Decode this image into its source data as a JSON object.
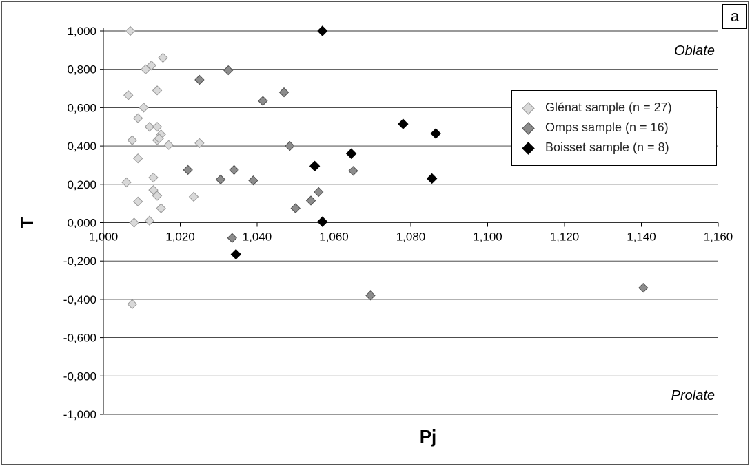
{
  "panel_label": "a",
  "chart_data": {
    "type": "scatter",
    "title": "",
    "xlabel": "Pj",
    "ylabel": "T",
    "xlim": [
      1.0,
      1.16
    ],
    "ylim": [
      -1.0,
      1.0
    ],
    "x_ticks": [
      "1,000",
      "1,020",
      "1,040",
      "1,060",
      "1,080",
      "1,100",
      "1,120",
      "1,140",
      "1,160"
    ],
    "y_ticks": [
      "1,000",
      "0,800",
      "0,600",
      "0,400",
      "0,200",
      "0,000",
      "-0,200",
      "-0,400",
      "-0,600",
      "-0,800",
      "-1,000"
    ],
    "grid": "horizontal",
    "legend_position": "right",
    "annotations": {
      "top": "Oblate",
      "bottom": "Prolate"
    },
    "series": [
      {
        "name": "Glénat sample (n = 27)",
        "color": "#d9d9d9",
        "stroke": "#9a9a9a",
        "points": [
          [
            1.007,
            1.0
          ],
          [
            1.011,
            0.8
          ],
          [
            1.0125,
            0.82
          ],
          [
            1.0155,
            0.86
          ],
          [
            1.0065,
            0.665
          ],
          [
            1.014,
            0.69
          ],
          [
            1.0105,
            0.6
          ],
          [
            1.009,
            0.545
          ],
          [
            1.012,
            0.5
          ],
          [
            1.014,
            0.5
          ],
          [
            1.0075,
            0.43
          ],
          [
            1.014,
            0.43
          ],
          [
            1.015,
            0.46
          ],
          [
            1.017,
            0.405
          ],
          [
            1.025,
            0.415
          ],
          [
            1.009,
            0.335
          ],
          [
            1.013,
            0.235
          ],
          [
            1.006,
            0.21
          ],
          [
            1.013,
            0.17
          ],
          [
            1.014,
            0.14
          ],
          [
            1.0235,
            0.135
          ],
          [
            1.009,
            0.11
          ],
          [
            1.015,
            0.075
          ],
          [
            1.008,
            0.0
          ],
          [
            1.012,
            0.01
          ],
          [
            1.0075,
            -0.425
          ],
          [
            1.0145,
            0.44
          ]
        ]
      },
      {
        "name": "Omps sample (n = 16)",
        "color": "#8c8c8c",
        "stroke": "#505050",
        "points": [
          [
            1.0325,
            0.795
          ],
          [
            1.025,
            0.745
          ],
          [
            1.047,
            0.68
          ],
          [
            1.0415,
            0.635
          ],
          [
            1.0485,
            0.4
          ],
          [
            1.022,
            0.275
          ],
          [
            1.034,
            0.275
          ],
          [
            1.065,
            0.27
          ],
          [
            1.0305,
            0.225
          ],
          [
            1.039,
            0.22
          ],
          [
            1.056,
            0.16
          ],
          [
            1.054,
            0.115
          ],
          [
            1.05,
            0.075
          ],
          [
            1.0335,
            -0.08
          ],
          [
            1.0695,
            -0.38
          ],
          [
            1.1405,
            -0.34
          ]
        ]
      },
      {
        "name": "Boisset sample (n = 8)",
        "color": "#000000",
        "stroke": "#000000",
        "points": [
          [
            1.057,
            1.0
          ],
          [
            1.078,
            0.515
          ],
          [
            1.0865,
            0.465
          ],
          [
            1.0645,
            0.36
          ],
          [
            1.055,
            0.295
          ],
          [
            1.0855,
            0.23
          ],
          [
            1.057,
            0.005
          ],
          [
            1.0345,
            -0.165
          ]
        ]
      }
    ]
  }
}
